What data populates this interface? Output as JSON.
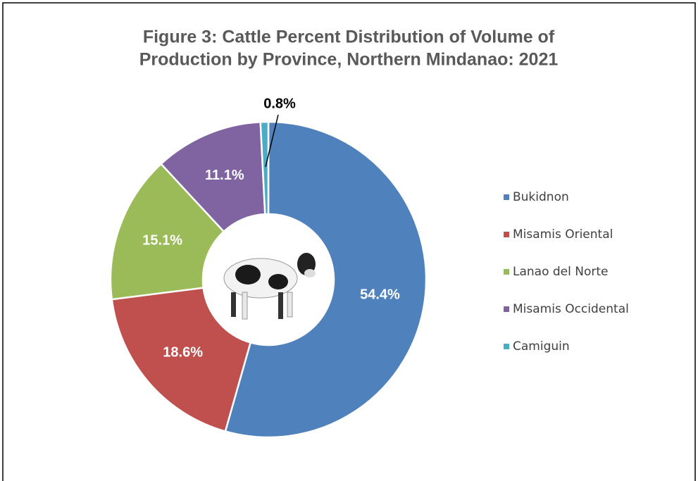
{
  "chart_data": {
    "type": "donut",
    "title": [
      "Figure 3: Cattle Percent Distribution of Volume of",
      "Production by Province, Northern Mindanao: 2021"
    ],
    "categories": [
      "Bukidnon",
      "Misamis Oriental",
      "Lanao del Norte",
      "Misamis Occidental",
      "Camiguin"
    ],
    "values": [
      54.4,
      18.6,
      15.1,
      11.1,
      0.8
    ],
    "value_labels": [
      "54.4%",
      "18.6%",
      "15.1%",
      "11.1%",
      "0.8%"
    ],
    "colors": [
      "#4f81bd",
      "#c0504d",
      "#9bbb59",
      "#8064a2",
      "#4bacc6"
    ],
    "legend": "right"
  }
}
